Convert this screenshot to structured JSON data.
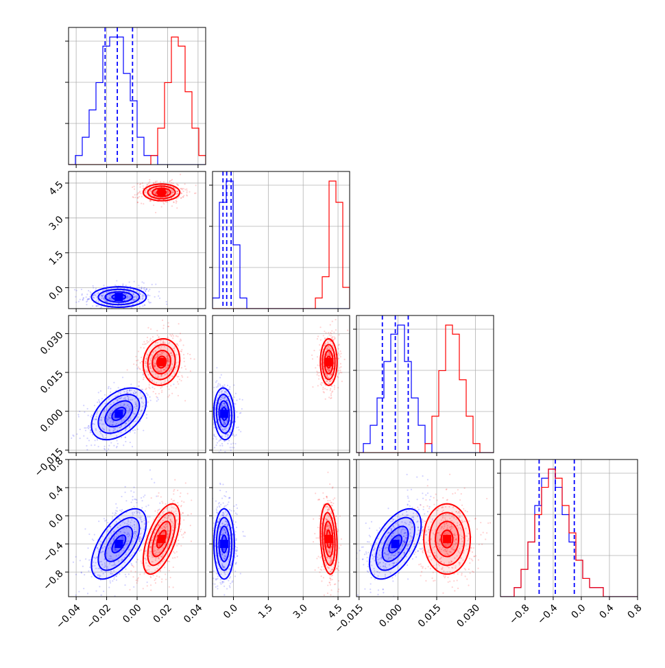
{
  "chart_data": {
    "type": "corner",
    "parameters": [
      {
        "id": "p0",
        "range": [
          -0.045,
          0.045
        ],
        "ticks": [
          -0.04,
          -0.02,
          0.0,
          0.02,
          0.04
        ],
        "tick_labels": [
          "−0.04",
          "−0.02",
          "0.00",
          "0.02",
          "0.04"
        ]
      },
      {
        "id": "p1",
        "range": [
          -0.9,
          5.0
        ],
        "ticks": [
          0.0,
          1.5,
          3.0,
          4.5
        ],
        "tick_labels": [
          "0.0",
          "1.5",
          "3.0",
          "4.5"
        ]
      },
      {
        "id": "p2",
        "range": [
          -0.016,
          0.037
        ],
        "ticks": [
          -0.015,
          0.0,
          0.015,
          0.03
        ],
        "tick_labels": [
          "−0.015",
          "0.000",
          "0.015",
          "0.030"
        ]
      },
      {
        "id": "p3",
        "range": [
          -1.15,
          0.8
        ],
        "ticks": [
          -0.8,
          -0.4,
          0.0,
          0.4,
          0.8
        ],
        "tick_labels": [
          "−0.8",
          "−0.4",
          "0.0",
          "0.4",
          "0.8"
        ]
      }
    ],
    "series": [
      {
        "color": "#0000ff",
        "mean": [
          -0.012,
          -0.4,
          -0.001,
          -0.4
        ],
        "sd": [
          0.009,
          0.22,
          0.005,
          0.25
        ],
        "corr": {
          "1_0": 0.0,
          "2_0": 0.45,
          "2_1": -0.1,
          "3_0": 0.6,
          "3_1": 0.0,
          "3_2": 0.55
        },
        "quantiles": [
          [
            -0.021,
            -0.013,
            -0.003
          ],
          [
            -0.45,
            -0.29,
            -0.1
          ],
          [
            -0.006,
            -0.001,
            0.004
          ],
          [
            -0.6,
            -0.37,
            -0.1
          ]
        ]
      },
      {
        "color": "#ff0000",
        "mean": [
          0.016,
          4.1,
          0.019,
          -0.33
        ],
        "sd": [
          0.006,
          0.18,
          0.0045,
          0.25
        ],
        "corr": {
          "1_0": 0.0,
          "2_0": 0.1,
          "2_1": 0.0,
          "3_0": 0.6,
          "3_1": -0.2,
          "3_2": 0.0
        },
        "quantiles": []
      }
    ],
    "histograms": {
      "0": {
        "bins": 20,
        "blue": [
          0,
          1,
          3,
          6,
          9,
          13,
          14,
          14,
          10,
          7,
          3,
          1,
          1,
          0,
          0,
          0,
          0,
          0,
          0,
          0
        ],
        "red": [
          0,
          0,
          0,
          0,
          0,
          0,
          0,
          0,
          0,
          0,
          0,
          0,
          1,
          4,
          9,
          14,
          13,
          8,
          4,
          1
        ]
      },
      "1": {
        "bins": 20,
        "blue": [
          1,
          10,
          12,
          6,
          1,
          0,
          0,
          0,
          0,
          0,
          0,
          0,
          0,
          0,
          0,
          0,
          0,
          0,
          0,
          0
        ],
        "red": [
          0,
          0,
          0,
          0,
          0,
          0,
          0,
          0,
          0,
          0,
          0,
          0,
          0,
          0,
          0,
          1,
          3,
          12,
          10,
          2
        ]
      },
      "2": {
        "bins": 20,
        "blue": [
          0,
          1,
          3,
          6,
          10,
          13,
          14,
          10,
          6,
          3,
          1,
          0,
          0,
          0,
          0,
          0,
          0,
          0,
          0,
          0
        ],
        "red": [
          0,
          0,
          0,
          0,
          0,
          0,
          0,
          0,
          0,
          0,
          1,
          4,
          9,
          14,
          13,
          8,
          4,
          1,
          0,
          0
        ]
      },
      "3": {
        "bins": 20,
        "blue": [
          0,
          0,
          1,
          3,
          6,
          10,
          13,
          14,
          12,
          9,
          6,
          4,
          2,
          1,
          1,
          0,
          0,
          0,
          0,
          0
        ],
        "red": [
          0,
          0,
          1,
          3,
          6,
          9,
          12,
          14,
          13,
          10,
          7,
          4,
          2,
          1,
          1,
          0,
          0,
          0,
          0,
          0
        ]
      }
    },
    "grid": true
  }
}
